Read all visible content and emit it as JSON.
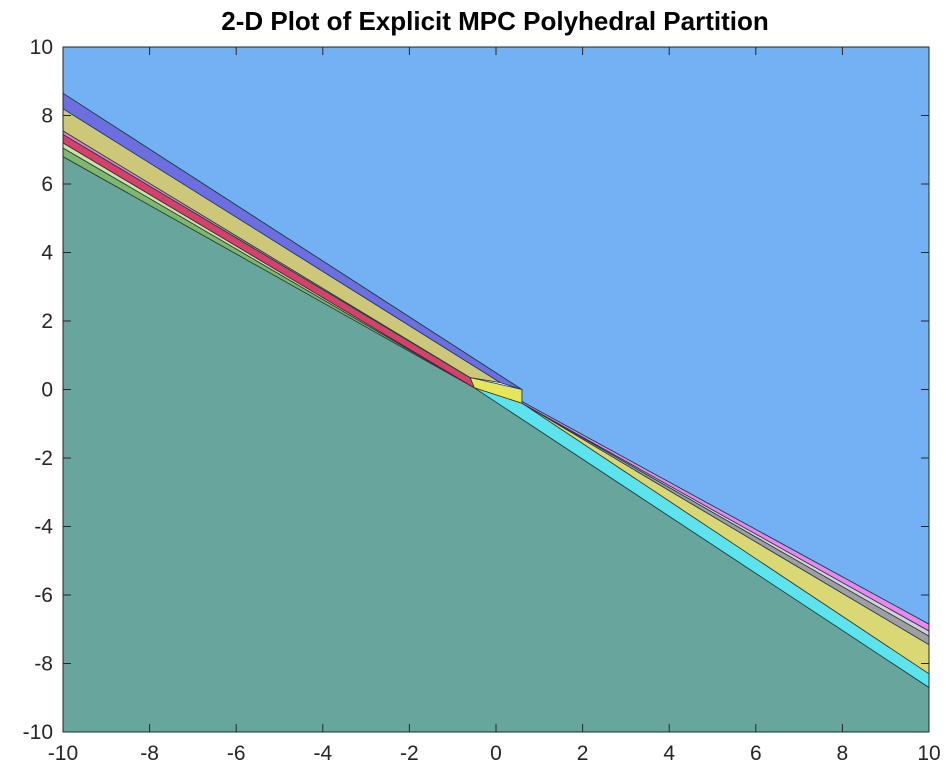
{
  "chart_data": {
    "type": "area",
    "title": "2-D Plot of Explicit MPC Polyhedral Partition",
    "xlabel": "",
    "ylabel": "",
    "xlim": [
      -10,
      10
    ],
    "ylim": [
      -10,
      10
    ],
    "grid": false,
    "x_ticks": [
      "-10",
      "-8",
      "-6",
      "-4",
      "-2",
      "0",
      "2",
      "4",
      "6",
      "8",
      "10"
    ],
    "y_ticks": [
      "-10",
      "-8",
      "-6",
      "-4",
      "-2",
      "0",
      "2",
      "4",
      "6",
      "8",
      "10"
    ],
    "regions": [
      {
        "color": "#68a69d",
        "vertices": [
          [
            -10,
            -10
          ],
          [
            10,
            -10
          ],
          [
            10,
            -8.7
          ],
          [
            -0.5,
            0.05
          ],
          [
            -10,
            6.8
          ]
        ]
      },
      {
        "color": "#5de3ed",
        "vertices": [
          [
            -0.5,
            0.05
          ],
          [
            0.6,
            -0.4
          ],
          [
            10,
            -8.3
          ],
          [
            10,
            -8.7
          ]
        ]
      },
      {
        "color": "#d9d875",
        "vertices": [
          [
            0.6,
            -0.4
          ],
          [
            10,
            -7.45
          ],
          [
            10,
            -8.3
          ]
        ]
      },
      {
        "color": "#9e9ea3",
        "vertices": [
          [
            0.6,
            -0.4
          ],
          [
            10,
            -7.2
          ],
          [
            10,
            -7.45
          ]
        ]
      },
      {
        "color": "#d2d2d6",
        "vertices": [
          [
            0.6,
            -0.4
          ],
          [
            10,
            -7.05
          ],
          [
            10,
            -7.2
          ]
        ]
      },
      {
        "color": "#e986ef",
        "vertices": [
          [
            0.6,
            -0.35
          ],
          [
            10,
            -6.85
          ],
          [
            10,
            -7.05
          ],
          [
            0.6,
            -0.4
          ]
        ]
      },
      {
        "color": "#e6e65c",
        "vertices": [
          [
            -0.6,
            0.35
          ],
          [
            0.6,
            0.0
          ],
          [
            0.6,
            -0.4
          ],
          [
            -0.5,
            0.05
          ]
        ]
      },
      {
        "color": "#7db86e",
        "vertices": [
          [
            -10,
            6.8
          ],
          [
            -0.5,
            0.05
          ],
          [
            -10,
            7.05
          ]
        ]
      },
      {
        "color": "#cbe3a2",
        "vertices": [
          [
            -10,
            7.05
          ],
          [
            -0.5,
            0.05
          ],
          [
            -10,
            7.2
          ]
        ]
      },
      {
        "color": "#d6416b",
        "vertices": [
          [
            -10,
            7.2
          ],
          [
            -0.5,
            0.05
          ],
          [
            -0.6,
            0.35
          ],
          [
            -10,
            7.45
          ]
        ]
      },
      {
        "color": "#e77fd0",
        "vertices": [
          [
            -10,
            7.45
          ],
          [
            -0.6,
            0.35
          ],
          [
            -10,
            7.55
          ]
        ]
      },
      {
        "color": "#cdc77a",
        "vertices": [
          [
            -10,
            7.55
          ],
          [
            -0.6,
            0.35
          ],
          [
            0.1,
            0.2
          ],
          [
            -10,
            8.2
          ]
        ]
      },
      {
        "color": "#6d6fe0",
        "vertices": [
          [
            -10,
            8.2
          ],
          [
            0.1,
            0.2
          ],
          [
            0.6,
            0.0
          ],
          [
            -10,
            8.65
          ]
        ]
      },
      {
        "color": "#73b0f4",
        "vertices": [
          [
            -10,
            8.65
          ],
          [
            0.6,
            0.0
          ],
          [
            0.6,
            -0.35
          ],
          [
            10,
            -6.85
          ],
          [
            10,
            10
          ],
          [
            -10,
            10
          ]
        ]
      }
    ]
  }
}
